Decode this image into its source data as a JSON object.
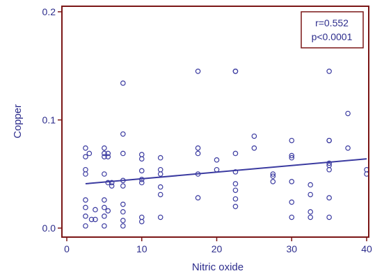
{
  "chart_data": {
    "type": "scatter",
    "xlabel": "Nitric oxide",
    "ylabel": "Copper",
    "xlim": [
      0,
      40
    ],
    "ylim": [
      -0.002,
      0.21
    ],
    "xticks": [
      0,
      10,
      20,
      30,
      40
    ],
    "yticks": [
      0.0,
      0.1,
      0.2
    ],
    "ytick_labels": [
      "0.0",
      "0.1",
      "0.2"
    ],
    "grid": false,
    "annotation": {
      "r": "r=0.552",
      "p": "p<0.0001",
      "placement": "top-right"
    },
    "regression_line": {
      "x": [
        2.5,
        40
      ],
      "y": [
        0.041,
        0.064
      ]
    },
    "colors": {
      "axis": "#7a1515",
      "marker": "#3a3aa0",
      "line": "#3a3aa0",
      "text": "#2c2c8c"
    },
    "points": [
      {
        "x": 2.5,
        "y": 0.074
      },
      {
        "x": 2.5,
        "y": 0.066
      },
      {
        "x": 2.5,
        "y": 0.054
      },
      {
        "x": 2.5,
        "y": 0.05
      },
      {
        "x": 2.5,
        "y": 0.026
      },
      {
        "x": 2.5,
        "y": 0.019
      },
      {
        "x": 2.5,
        "y": 0.011
      },
      {
        "x": 2.5,
        "y": 0.002
      },
      {
        "x": 3.0,
        "y": 0.069
      },
      {
        "x": 3.3,
        "y": 0.008
      },
      {
        "x": 3.8,
        "y": 0.017
      },
      {
        "x": 3.8,
        "y": 0.008
      },
      {
        "x": 5.0,
        "y": 0.074
      },
      {
        "x": 5.0,
        "y": 0.069
      },
      {
        "x": 5.0,
        "y": 0.066
      },
      {
        "x": 5.0,
        "y": 0.05
      },
      {
        "x": 5.0,
        "y": 0.026
      },
      {
        "x": 5.0,
        "y": 0.019
      },
      {
        "x": 5.0,
        "y": 0.011
      },
      {
        "x": 5.0,
        "y": 0.002
      },
      {
        "x": 5.5,
        "y": 0.069
      },
      {
        "x": 5.5,
        "y": 0.066
      },
      {
        "x": 5.5,
        "y": 0.042
      },
      {
        "x": 5.5,
        "y": 0.016
      },
      {
        "x": 6.0,
        "y": 0.042
      },
      {
        "x": 6.0,
        "y": 0.039
      },
      {
        "x": 7.5,
        "y": 0.134
      },
      {
        "x": 7.5,
        "y": 0.087
      },
      {
        "x": 7.5,
        "y": 0.069
      },
      {
        "x": 7.5,
        "y": 0.044
      },
      {
        "x": 7.5,
        "y": 0.039
      },
      {
        "x": 7.5,
        "y": 0.022
      },
      {
        "x": 7.5,
        "y": 0.015
      },
      {
        "x": 7.5,
        "y": 0.007
      },
      {
        "x": 7.5,
        "y": 0.002
      },
      {
        "x": 10.0,
        "y": 0.068
      },
      {
        "x": 10.0,
        "y": 0.064
      },
      {
        "x": 10.0,
        "y": 0.053
      },
      {
        "x": 10.0,
        "y": 0.045
      },
      {
        "x": 10.0,
        "y": 0.042
      },
      {
        "x": 10.0,
        "y": 0.01
      },
      {
        "x": 10.0,
        "y": 0.006
      },
      {
        "x": 12.5,
        "y": 0.065
      },
      {
        "x": 12.5,
        "y": 0.054
      },
      {
        "x": 12.5,
        "y": 0.05
      },
      {
        "x": 12.5,
        "y": 0.038
      },
      {
        "x": 12.5,
        "y": 0.031
      },
      {
        "x": 12.5,
        "y": 0.01
      },
      {
        "x": 17.5,
        "y": 0.145
      },
      {
        "x": 17.5,
        "y": 0.074
      },
      {
        "x": 17.5,
        "y": 0.069
      },
      {
        "x": 17.5,
        "y": 0.05
      },
      {
        "x": 17.5,
        "y": 0.028
      },
      {
        "x": 20.0,
        "y": 0.063
      },
      {
        "x": 20.0,
        "y": 0.054
      },
      {
        "x": 22.5,
        "y": 0.145
      },
      {
        "x": 22.5,
        "y": 0.145
      },
      {
        "x": 22.5,
        "y": 0.069
      },
      {
        "x": 22.5,
        "y": 0.052
      },
      {
        "x": 22.5,
        "y": 0.041
      },
      {
        "x": 22.5,
        "y": 0.035
      },
      {
        "x": 22.5,
        "y": 0.027
      },
      {
        "x": 22.5,
        "y": 0.02
      },
      {
        "x": 25.0,
        "y": 0.085
      },
      {
        "x": 25.0,
        "y": 0.074
      },
      {
        "x": 27.5,
        "y": 0.05
      },
      {
        "x": 27.5,
        "y": 0.048
      },
      {
        "x": 27.5,
        "y": 0.043
      },
      {
        "x": 30.0,
        "y": 0.081
      },
      {
        "x": 30.0,
        "y": 0.067
      },
      {
        "x": 30.0,
        "y": 0.065
      },
      {
        "x": 30.0,
        "y": 0.043
      },
      {
        "x": 30.0,
        "y": 0.024
      },
      {
        "x": 30.0,
        "y": 0.01
      },
      {
        "x": 32.5,
        "y": 0.04
      },
      {
        "x": 32.5,
        "y": 0.031
      },
      {
        "x": 32.5,
        "y": 0.015
      },
      {
        "x": 32.5,
        "y": 0.01
      },
      {
        "x": 35.0,
        "y": 0.145
      },
      {
        "x": 35.0,
        "y": 0.081
      },
      {
        "x": 35.0,
        "y": 0.081
      },
      {
        "x": 35.0,
        "y": 0.06
      },
      {
        "x": 35.0,
        "y": 0.058
      },
      {
        "x": 35.0,
        "y": 0.054
      },
      {
        "x": 35.0,
        "y": 0.028
      },
      {
        "x": 35.0,
        "y": 0.01
      },
      {
        "x": 37.5,
        "y": 0.106
      },
      {
        "x": 37.5,
        "y": 0.074
      },
      {
        "x": 40.0,
        "y": 0.054
      },
      {
        "x": 40.0,
        "y": 0.05
      }
    ]
  }
}
